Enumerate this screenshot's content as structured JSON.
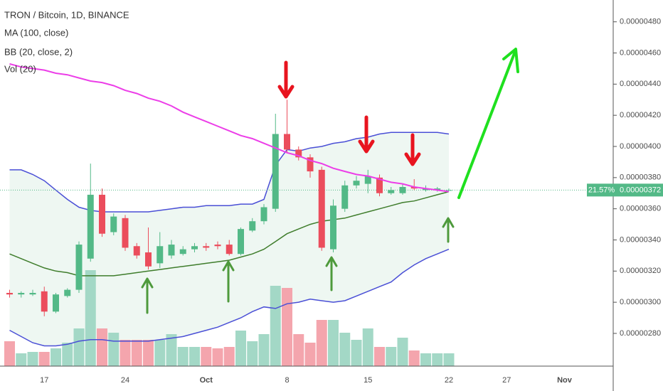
{
  "chart_data": {
    "type": "candlestick",
    "title": "TRON / Bitcoin, 1D, BINANCE",
    "categories": [
      null,
      null,
      null,
      "17",
      null,
      null,
      null,
      null,
      null,
      null,
      "24",
      null,
      null,
      null,
      null,
      null,
      null,
      "Oct",
      null,
      null,
      null,
      null,
      null,
      null,
      "8",
      null,
      null,
      null,
      null,
      null,
      null,
      "15",
      null,
      null,
      null,
      null,
      null,
      null,
      "22",
      null,
      null,
      null,
      null,
      "27",
      null,
      null,
      null,
      null,
      "Nov",
      null,
      null,
      null
    ],
    "open": [
      3.06e-06,
      3.05e-06,
      3.05e-06,
      3.07e-06,
      2.94e-06,
      3.04e-06,
      3.08e-06,
      3.28e-06,
      3.69e-06,
      3.45e-06,
      3.54e-06,
      3.36e-06,
      3.32e-06,
      3.25e-06,
      3.3e-06,
      3.31e-06,
      3.34e-06,
      3.36e-06,
      3.37e-06,
      3.37e-06,
      3.31e-06,
      3.46e-06,
      3.52e-06,
      3.6e-06,
      4.08e-06,
      3.98e-06,
      3.93e-06,
      3.85e-06,
      3.34e-06,
      3.6e-06,
      3.75e-06,
      3.76e-06,
      3.8e-06,
      3.7e-06,
      3.7e-06,
      3.74e-06,
      3.72e-06,
      3.72e-06,
      3.72e-06,
      null,
      null,
      null,
      null,
      null,
      null,
      null,
      null,
      null,
      null,
      null,
      null,
      null
    ],
    "high": [
      3.08e-06,
      3.07e-06,
      3.08e-06,
      3.1e-06,
      3.06e-06,
      3.09e-06,
      3.39e-06,
      3.89e-06,
      3.73e-06,
      3.57e-06,
      3.56e-06,
      3.38e-06,
      3.48e-06,
      3.45e-06,
      3.4e-06,
      3.36e-06,
      3.38e-06,
      3.38e-06,
      3.39e-06,
      3.4e-06,
      3.48e-06,
      3.54e-06,
      3.63e-06,
      4.21e-06,
      4.3e-06,
      4e-06,
      3.95e-06,
      3.87e-06,
      3.66e-06,
      3.78e-06,
      3.81e-06,
      3.85e-06,
      3.82e-06,
      3.74e-06,
      3.76e-06,
      3.79e-06,
      3.75e-06,
      3.74e-06,
      3.73e-06,
      null,
      null,
      null,
      null,
      null,
      null,
      null,
      null,
      null,
      null,
      null,
      null,
      null
    ],
    "low": [
      3.03e-06,
      3.03e-06,
      3.04e-06,
      2.91e-06,
      2.93e-06,
      3.03e-06,
      3.06e-06,
      3.26e-06,
      3.42e-06,
      3.43e-06,
      3.33e-06,
      3.28e-06,
      3.21e-06,
      3.22e-06,
      3.28e-06,
      3.3e-06,
      3.32e-06,
      3.33e-06,
      3.34e-06,
      3.3e-06,
      3.3e-06,
      3.45e-06,
      3.5e-06,
      3.58e-06,
      3.96e-06,
      3.91e-06,
      3.8e-06,
      3.33e-06,
      3.32e-06,
      3.58e-06,
      3.73e-06,
      3.7e-06,
      3.68e-06,
      3.69e-06,
      3.69e-06,
      3.72e-06,
      3.71e-06,
      3.71e-06,
      3.72e-06,
      null,
      null,
      null,
      null,
      null,
      null,
      null,
      null,
      null,
      null,
      null,
      null,
      null
    ],
    "close": [
      3.05e-06,
      3.06e-06,
      3.06e-06,
      2.94e-06,
      3.05e-06,
      3.08e-06,
      3.37e-06,
      3.69e-06,
      3.44e-06,
      3.55e-06,
      3.35e-06,
      3.3e-06,
      3.23e-06,
      3.36e-06,
      3.37e-06,
      3.34e-06,
      3.36e-06,
      3.35e-06,
      3.36e-06,
      3.31e-06,
      3.47e-06,
      3.52e-06,
      3.61e-06,
      4.08e-06,
      3.98e-06,
      3.93e-06,
      3.84e-06,
      3.35e-06,
      3.62e-06,
      3.75e-06,
      3.78e-06,
      3.81e-06,
      3.7e-06,
      3.72e-06,
      3.74e-06,
      3.73e-06,
      3.73e-06,
      3.73e-06,
      3.72e-06,
      null,
      null,
      null,
      null,
      null,
      null,
      null,
      null,
      null,
      null,
      null,
      null,
      null
    ],
    "up_color": "#53b987",
    "down_color": "#eb4d5c",
    "volume": {
      "name": "Vol (20)",
      "up_color": "#a3d8c6",
      "down_color": "#f4a5ad",
      "values": [
        35,
        18,
        20,
        20,
        25,
        33,
        53,
        135,
        53,
        47,
        37,
        37,
        37,
        37,
        45,
        27,
        27,
        27,
        25,
        27,
        50,
        35,
        45,
        113,
        110,
        45,
        33,
        65,
        65,
        47,
        37,
        53,
        27,
        27,
        40,
        22,
        18,
        18,
        18,
        null,
        null,
        null,
        null,
        null,
        null,
        null,
        null,
        null,
        null,
        null,
        null,
        null
      ]
    },
    "ma": {
      "name": "MA (100, close)",
      "color": "#ec3ee8",
      "values": [
        4.53e-06,
        4.51e-06,
        4.5e-06,
        4.49e-06,
        4.47e-06,
        4.46e-06,
        4.44e-06,
        4.42e-06,
        4.41e-06,
        4.39e-06,
        4.36e-06,
        4.34e-06,
        4.31e-06,
        4.29e-06,
        4.26e-06,
        4.22e-06,
        4.19e-06,
        4.16e-06,
        4.13e-06,
        4.1e-06,
        4.07e-06,
        4.05e-06,
        4.02e-06,
        3.99e-06,
        3.96e-06,
        3.94e-06,
        3.91e-06,
        3.89e-06,
        3.86e-06,
        3.84e-06,
        3.82e-06,
        3.81e-06,
        3.79e-06,
        3.77e-06,
        3.76e-06,
        3.74e-06,
        3.73e-06,
        3.72e-06,
        3.71e-06,
        null,
        null,
        null,
        null,
        null,
        null,
        null,
        null,
        null,
        null,
        null,
        null,
        null
      ]
    },
    "bb": {
      "name": "BB (20, close, 2)",
      "band_color": "#4a4fd6",
      "basis_color": "#3f7d2c",
      "fill": "#eef7f2",
      "upper": [
        3.85e-06,
        3.85e-06,
        3.82e-06,
        3.78e-06,
        3.72e-06,
        3.66e-06,
        3.61e-06,
        3.59e-06,
        3.58e-06,
        3.58e-06,
        3.58e-06,
        3.58e-06,
        3.58e-06,
        3.59e-06,
        3.6e-06,
        3.61e-06,
        3.61e-06,
        3.62e-06,
        3.62e-06,
        3.62e-06,
        3.63e-06,
        3.63e-06,
        3.66e-06,
        3.88e-06,
        3.98e-06,
        3.97e-06,
        3.99e-06,
        4e-06,
        4.02e-06,
        4.03e-06,
        4.05e-06,
        4.06e-06,
        4.08e-06,
        4.09e-06,
        4.09e-06,
        4.09e-06,
        4.09e-06,
        4.09e-06,
        4.08e-06,
        null,
        null,
        null,
        null,
        null,
        null,
        null,
        null,
        null,
        null,
        null,
        null,
        null
      ],
      "basis": [
        3.31e-06,
        3.28e-06,
        3.25e-06,
        3.22e-06,
        3.2e-06,
        3.19e-06,
        3.17e-06,
        3.17e-06,
        3.17e-06,
        3.17e-06,
        3.18e-06,
        3.19e-06,
        3.2e-06,
        3.21e-06,
        3.22e-06,
        3.23e-06,
        3.24e-06,
        3.25e-06,
        3.26e-06,
        3.27e-06,
        3.29e-06,
        3.31e-06,
        3.34e-06,
        3.39e-06,
        3.44e-06,
        3.47e-06,
        3.5e-06,
        3.52e-06,
        3.53e-06,
        3.54e-06,
        3.56e-06,
        3.58e-06,
        3.6e-06,
        3.62e-06,
        3.64e-06,
        3.65e-06,
        3.67e-06,
        3.69e-06,
        3.71e-06,
        null,
        null,
        null,
        null,
        null,
        null,
        null,
        null,
        null,
        null,
        null,
        null,
        null
      ],
      "lower": [
        2.82e-06,
        2.78e-06,
        2.74e-06,
        2.72e-06,
        2.72e-06,
        2.73e-06,
        2.75e-06,
        2.76e-06,
        2.76e-06,
        2.75e-06,
        2.75e-06,
        2.75e-06,
        2.75e-06,
        2.76e-06,
        2.77e-06,
        2.78e-06,
        2.8e-06,
        2.82e-06,
        2.84e-06,
        2.87e-06,
        2.9e-06,
        2.94e-06,
        2.97e-06,
        2.96e-06,
        2.99e-06,
        3e-06,
        3.02e-06,
        3.01e-06,
        3e-06,
        3.01e-06,
        3.04e-06,
        3.07e-06,
        3.1e-06,
        3.13e-06,
        3.19e-06,
        3.24e-06,
        3.28e-06,
        3.31e-06,
        3.34e-06,
        null,
        null,
        null,
        null,
        null,
        null,
        null,
        null,
        null,
        null,
        null,
        null,
        null
      ]
    },
    "ylim": [
      2.59e-06,
      4.94e-06
    ],
    "yticks": [
      {
        "value": 2.8e-06,
        "label": "0.00000280"
      },
      {
        "value": 3e-06,
        "label": "0.00000300"
      },
      {
        "value": 3.2e-06,
        "label": "0.00000320"
      },
      {
        "value": 3.4e-06,
        "label": "0.00000340"
      },
      {
        "value": 3.6e-06,
        "label": "0.00000360"
      },
      {
        "value": 3.8e-06,
        "label": "0.00000380"
      },
      {
        "value": 4e-06,
        "label": "0.00000400"
      },
      {
        "value": 4.2e-06,
        "label": "0.00000420"
      },
      {
        "value": 4.4e-06,
        "label": "0.00000440"
      },
      {
        "value": 4.6e-06,
        "label": "0.00000460"
      },
      {
        "value": 4.8e-06,
        "label": "0.00000480"
      }
    ],
    "last_change": {
      "value": 21.57,
      "label": "21.57%"
    },
    "last_price": {
      "value": 3.72e-06,
      "label": "0.00000372"
    },
    "grid": false
  }
}
